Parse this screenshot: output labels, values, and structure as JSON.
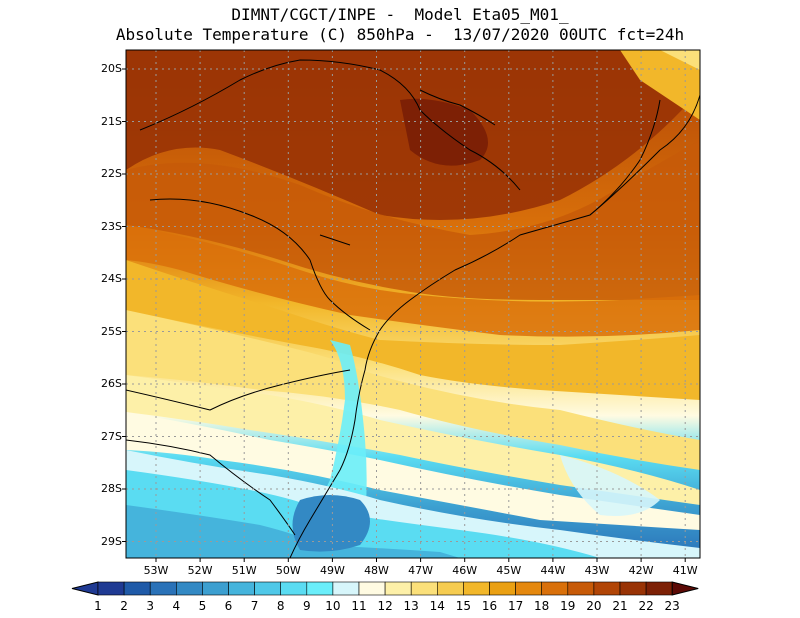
{
  "header": {
    "line1": "DIMNT/CGCT/INPE -  Model Eta05_M01_",
    "line2": "Absolute Temperature (C) 850hPa -  13/07/2020 00UTC fct=24h"
  },
  "map": {
    "lat_labels": [
      "20S",
      "21S",
      "22S",
      "23S",
      "24S",
      "25S",
      "26S",
      "27S",
      "28S",
      "29S"
    ],
    "lon_labels": [
      "53W",
      "52W",
      "51W",
      "50W",
      "49W",
      "48W",
      "47W",
      "46W",
      "45W",
      "44W",
      "43W",
      "42W",
      "41W"
    ],
    "frame_color": "#000000",
    "grid_color": "#9a9a9a"
  },
  "colorbar": {
    "labels": [
      "1",
      "2",
      "3",
      "4",
      "5",
      "6",
      "7",
      "8",
      "9",
      "10",
      "11",
      "12",
      "13",
      "14",
      "15",
      "16",
      "17",
      "18",
      "19",
      "20",
      "21",
      "22",
      "23"
    ],
    "colors": [
      "#1f3a93",
      "#1f5aa8",
      "#2a72b8",
      "#3389c4",
      "#3c9fd0",
      "#45b4dc",
      "#4fc8e8",
      "#5adcf2",
      "#6aeefa",
      "#d7f6fb",
      "#fffbe2",
      "#fdf0a8",
      "#fbe07a",
      "#f6cc50",
      "#f2b72a",
      "#eaa013",
      "#e5880e",
      "#d9700a",
      "#c75a08",
      "#b14506",
      "#993305",
      "#7d2005",
      "#5c0a06"
    ]
  }
}
